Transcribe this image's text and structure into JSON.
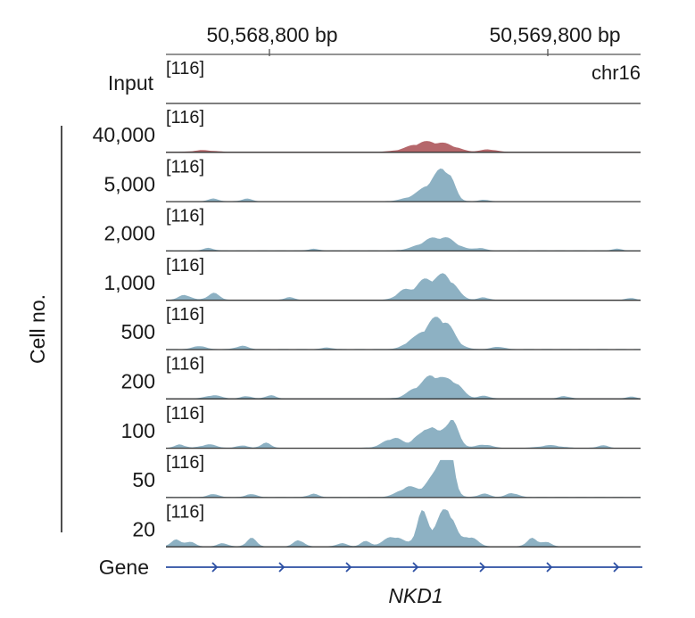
{
  "coordinates": {
    "left_label": "50,568,800 bp",
    "right_label": "50,569,800 bp",
    "chromosome": "chr16"
  },
  "scale_label": "[116]",
  "input_label": "Input",
  "cell_axis_label": "Cell no.",
  "gene_label": "Gene",
  "gene_name": "NKD1",
  "colors": {
    "input_fill": "#b5676b",
    "sample_fill": "#8db1c3",
    "gene_line": "#2c4fa3"
  },
  "tracks": [
    {
      "label": "40,000",
      "kind": "input"
    },
    {
      "label": "5,000",
      "kind": "sample"
    },
    {
      "label": "2,000",
      "kind": "sample"
    },
    {
      "label": "1,000",
      "kind": "sample"
    },
    {
      "label": "500",
      "kind": "sample"
    },
    {
      "label": "200",
      "kind": "sample"
    },
    {
      "label": "100",
      "kind": "sample"
    },
    {
      "label": "50",
      "kind": "sample"
    },
    {
      "label": "20",
      "kind": "sample"
    }
  ]
}
